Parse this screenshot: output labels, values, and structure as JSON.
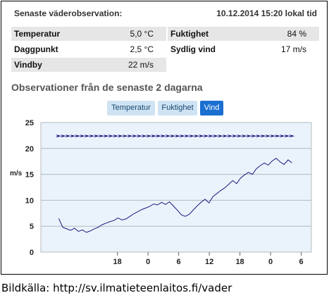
{
  "header": {
    "title": "Senaste väderobservation:",
    "timestamp": "10.12.2014 15:20 lokal tid"
  },
  "observations": {
    "temperature": {
      "label": "Temperatur",
      "value": "5,0 °C"
    },
    "humidity": {
      "label": "Fuktighet",
      "value": "84 %"
    },
    "dewpoint": {
      "label": "Daggpunkt",
      "value": "2,5 °C"
    },
    "wind": {
      "label": "Sydlig vind",
      "value": "17 m/s"
    },
    "gust": {
      "label": "Vindby",
      "value": "22 m/s"
    }
  },
  "section_title": "Observationer från de senaste 2 dagarna",
  "tabs": [
    {
      "label": "Temperatur",
      "active": false
    },
    {
      "label": "Fuktighet",
      "active": false
    },
    {
      "label": "Vind",
      "active": true
    }
  ],
  "colors": {
    "line": "#1a1a80",
    "plot_bg": "#eaf3fb",
    "tab_active": "#1b6fd0",
    "tab_inactive": "#cfe3f3"
  },
  "chart_data": {
    "type": "line",
    "ylabel": "m/s",
    "ylim": [
      0,
      25
    ],
    "yticks": [
      0,
      5,
      10,
      15,
      20,
      25
    ],
    "xtick_labels": [
      "18",
      "0",
      "6",
      "12",
      "18",
      "0",
      "6",
      "12",
      "18"
    ],
    "series": [
      {
        "values": [
          6.5,
          4.8,
          4.5,
          4.2,
          4.6,
          4.0,
          4.3,
          3.8,
          4.1,
          4.5,
          4.8,
          5.3,
          5.6,
          5.9,
          6.1,
          6.6,
          6.2,
          6.4,
          6.9,
          7.4,
          7.8,
          8.2,
          8.5,
          8.8,
          9.3,
          9.1,
          9.6,
          9.2,
          9.7,
          8.9,
          8.1,
          7.2,
          6.9,
          7.3,
          8.1,
          8.9,
          9.6,
          10.2,
          9.5,
          10.7,
          11.3,
          11.9,
          12.4,
          13.1,
          13.8,
          13.2,
          14.3,
          14.9,
          15.4,
          15.0,
          16.1,
          16.7,
          17.2,
          16.8,
          17.6,
          18.1,
          17.4,
          16.9,
          17.8,
          17.2
        ],
        "x_start_hour": -11.5,
        "x_end_hour": 34.2
      }
    ],
    "wind_direction_markers": {
      "level": 22.4,
      "direction": "south"
    }
  }
}
